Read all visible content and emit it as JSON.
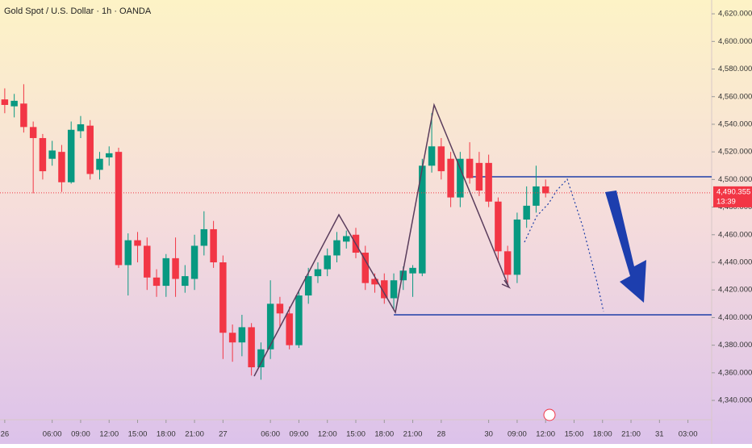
{
  "chart_data": {
    "type": "candlestick",
    "title": "Gold Spot / U.S. Dollar · 1h · OANDA",
    "open": [
      4558,
      4553,
      4555,
      4538,
      4530,
      4515,
      4520,
      4498,
      4535,
      4539,
      4507,
      4516,
      4520,
      4438,
      4456,
      4452,
      4429,
      4423,
      4443,
      4423,
      4428,
      4452,
      4464,
      4440,
      4389,
      4382,
      4393,
      4364,
      4377,
      4410,
      4403,
      4380,
      4416,
      4430,
      4435,
      4445,
      4455,
      4460,
      4447,
      4428,
      4427,
      4414,
      4427,
      4432,
      4432,
      4510,
      4524,
      4515,
      4487,
      4515,
      4512,
      4512,
      4484,
      4448,
      4431,
      4471,
      4481,
      4495
    ],
    "high": [
      4566,
      4562,
      4569,
      4542,
      4533,
      4528,
      4525,
      4542,
      4546,
      4543,
      4520,
      4524,
      4523,
      4461,
      4462,
      4458,
      4435,
      4446,
      4458,
      4438,
      4460,
      4477,
      4470,
      4445,
      4395,
      4402,
      4396,
      4382,
      4427,
      4415,
      4408,
      4420,
      4436,
      4440,
      4450,
      4462,
      4463,
      4465,
      4452,
      4432,
      4432,
      4432,
      4437,
      4438,
      4515,
      4548,
      4530,
      4520,
      4520,
      4527,
      4520,
      4518,
      4487,
      4452,
      4476,
      4495,
      4510,
      4500
    ],
    "low": [
      4548,
      4545,
      4534,
      4490,
      4500,
      4510,
      4491,
      4497,
      4530,
      4500,
      4500,
      4510,
      4436,
      4416,
      4440,
      4420,
      4415,
      4415,
      4415,
      4418,
      4420,
      4445,
      4436,
      4370,
      4368,
      4372,
      4358,
      4355,
      4370,
      4393,
      4377,
      4378,
      4410,
      4425,
      4430,
      4440,
      4450,
      4443,
      4420,
      4418,
      4410,
      4405,
      4420,
      4415,
      4430,
      4505,
      4500,
      4480,
      4480,
      4497,
      4488,
      4480,
      4440,
      4425,
      4425,
      4465,
      4476,
      4487
    ],
    "close": [
      4554,
      4557,
      4538,
      4530,
      4506,
      4521,
      4498,
      4536,
      4540,
      4504,
      4515,
      4519,
      4438,
      4456,
      4452,
      4429,
      4423,
      4443,
      4428,
      4430,
      4452,
      4464,
      4440,
      4389,
      4382,
      4393,
      4364,
      4377,
      4410,
      4403,
      4380,
      4416,
      4430,
      4435,
      4445,
      4456,
      4459,
      4447,
      4425,
      4424,
      4414,
      4427,
      4434,
      4436,
      4510,
      4524,
      4506,
      4487,
      4515,
      4501,
      4492,
      4484,
      4448,
      4431,
      4471,
      4481,
      4495,
      4490
    ],
    "up_color": "#089981",
    "down_color": "#f23645",
    "ylim": [
      4326,
      4630
    ],
    "yticks": [
      {
        "value": 4620,
        "label": "4,620.000"
      },
      {
        "value": 4600,
        "label": "4,600.000"
      },
      {
        "value": 4580,
        "label": "4,580.000"
      },
      {
        "value": 4560,
        "label": "4,560.000"
      },
      {
        "value": 4540,
        "label": "4,540.000"
      },
      {
        "value": 4520,
        "label": "4,520.000"
      },
      {
        "value": 4500,
        "label": "4,500.000"
      },
      {
        "value": 4480,
        "label": "4,480.000"
      },
      {
        "value": 4460,
        "label": "4,460.000"
      },
      {
        "value": 4440,
        "label": "4,440.000"
      },
      {
        "value": 4420,
        "label": "4,420.000"
      },
      {
        "value": 4400,
        "label": "4,400.000"
      },
      {
        "value": 4380,
        "label": "4,380.000"
      },
      {
        "value": 4360,
        "label": "4,360.000"
      },
      {
        "value": 4340,
        "label": "4,340.000"
      }
    ],
    "xlim": [
      -0.5,
      74.5
    ],
    "xticks": [
      {
        "value": 0,
        "label": "26"
      },
      {
        "value": 5,
        "label": "06:00"
      },
      {
        "value": 8,
        "label": "09:00"
      },
      {
        "value": 11,
        "label": "12:00"
      },
      {
        "value": 14,
        "label": "15:00"
      },
      {
        "value": 17,
        "label": "18:00"
      },
      {
        "value": 20,
        "label": "21:00"
      },
      {
        "value": 23,
        "label": "27"
      },
      {
        "value": 28,
        "label": "06:00"
      },
      {
        "value": 31,
        "label": "09:00"
      },
      {
        "value": 34,
        "label": "12:00"
      },
      {
        "value": 37,
        "label": "15:00"
      },
      {
        "value": 40,
        "label": "18:00"
      },
      {
        "value": 43,
        "label": "21:00"
      },
      {
        "value": 46,
        "label": "28"
      },
      {
        "value": 51,
        "label": "30"
      },
      {
        "value": 54,
        "label": "09:00"
      },
      {
        "value": 57,
        "label": "12:00"
      },
      {
        "value": 60,
        "label": "15:00"
      },
      {
        "value": 63,
        "label": "18:00"
      },
      {
        "value": 66,
        "label": "21:00"
      },
      {
        "value": 69,
        "label": "31"
      },
      {
        "value": 72,
        "label": "03:00"
      }
    ],
    "last_price": {
      "value": 4490.355,
      "label": "4,490.355"
    },
    "countdown": "13:39",
    "levels": [
      {
        "value": 4502,
        "from": 49
      },
      {
        "value": 4402,
        "from": 41
      }
    ]
  }
}
